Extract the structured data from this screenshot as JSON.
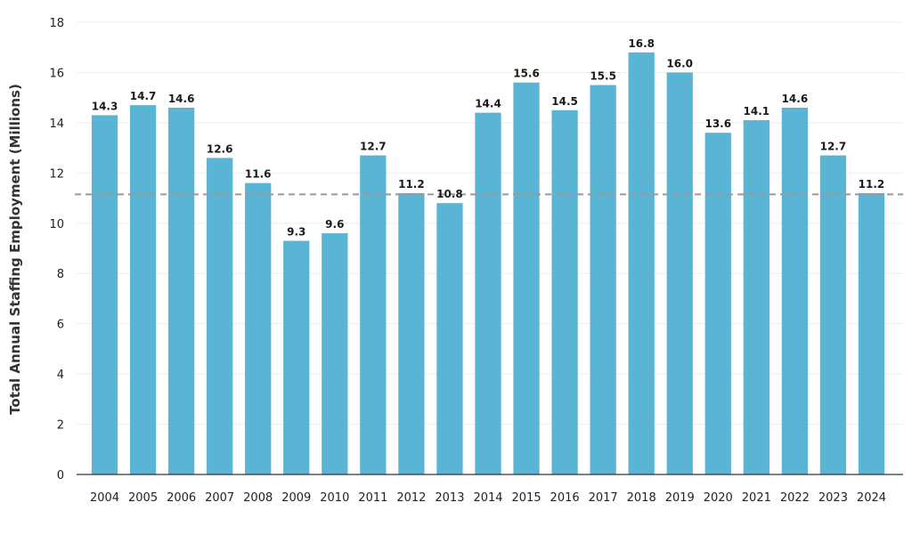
{
  "chart_data": {
    "type": "bar",
    "title": "",
    "xlabel": "",
    "ylabel": "Total Annual Staffing  Employment (Millions)",
    "categories": [
      "2004",
      "2005",
      "2006",
      "2007",
      "2008",
      "2009",
      "2010",
      "2011",
      "2012",
      "2013",
      "2014",
      "2015",
      "2016",
      "2017",
      "2018",
      "2019",
      "2020",
      "2021",
      "2022",
      "2023",
      "2024"
    ],
    "values": [
      14.3,
      14.7,
      14.6,
      12.6,
      11.6,
      9.3,
      9.6,
      12.7,
      11.2,
      10.8,
      14.4,
      15.6,
      14.5,
      15.5,
      16.8,
      16.0,
      13.6,
      14.1,
      14.6,
      12.7,
      11.2
    ],
    "data_labels": [
      "14.3",
      "14.7",
      "14.6",
      "12.6",
      "11.6",
      "9.3",
      "9.6",
      "12.7",
      "11.2",
      "10.8",
      "14.4",
      "15.6",
      "14.5",
      "15.5",
      "16.8",
      "16.0",
      "13.6",
      "14.1",
      "14.6",
      "12.7",
      "11.2"
    ],
    "y_ticks": [
      "0",
      "2",
      "4",
      "6",
      "8",
      "10",
      "12",
      "14",
      "16",
      "18"
    ],
    "ylim": [
      0,
      18
    ],
    "reference_line": {
      "value": 11.15,
      "style": "dashed"
    },
    "grid": true,
    "colors": {
      "bar": "#5ab4d4",
      "reference_line": "#999999",
      "axis": "#333333"
    }
  }
}
